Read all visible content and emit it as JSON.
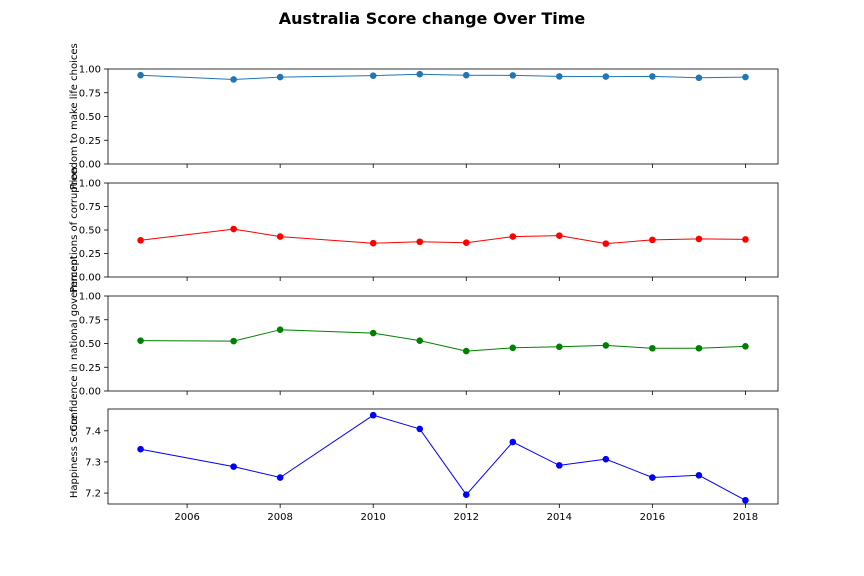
{
  "figure": {
    "title": "Australia Score change Over Time"
  },
  "chart_data": {
    "type": "line",
    "x": [
      2005,
      2007,
      2008,
      2010,
      2011,
      2012,
      2013,
      2014,
      2015,
      2016,
      2017,
      2018
    ],
    "xlim": [
      2004.3,
      2018.7
    ],
    "xticks": [
      2006,
      2008,
      2010,
      2012,
      2014,
      2016,
      2018
    ],
    "grid": false,
    "panels": [
      {
        "ylabel": "Freedom to make life choices",
        "color": "#1f77b4",
        "ylim": [
          0,
          1
        ],
        "yticks": [
          0,
          0.25,
          0.5,
          0.75,
          1
        ],
        "ytick_labels": [
          "0.00",
          "0.25",
          "0.50",
          "0.75",
          "1.00"
        ],
        "values": [
          0.935,
          0.89,
          0.915,
          0.93,
          0.945,
          0.935,
          0.933,
          0.922,
          0.92,
          0.922,
          0.908,
          0.915
        ]
      },
      {
        "ylabel": "Perceptions of corruption",
        "color": "#ff0000",
        "ylim": [
          0,
          1
        ],
        "yticks": [
          0,
          0.25,
          0.5,
          0.75,
          1
        ],
        "ytick_labels": [
          "0.00",
          "0.25",
          "0.50",
          "0.75",
          "1.00"
        ],
        "values": [
          0.39,
          0.51,
          0.43,
          0.36,
          0.375,
          0.365,
          0.43,
          0.44,
          0.355,
          0.395,
          0.405,
          0.4
        ]
      },
      {
        "ylabel": "Confidence in national government",
        "color": "#008000",
        "ylim": [
          0,
          1
        ],
        "yticks": [
          0,
          0.25,
          0.5,
          0.75,
          1
        ],
        "ytick_labels": [
          "0.00",
          "0.25",
          "0.50",
          "0.75",
          "1.00"
        ],
        "values": [
          0.53,
          0.525,
          0.645,
          0.61,
          0.53,
          0.42,
          0.455,
          0.465,
          0.48,
          0.45,
          0.45,
          0.47
        ]
      },
      {
        "ylabel": "Happiness Score",
        "color": "#0000ff",
        "ylim": [
          7.165,
          7.47
        ],
        "yticks": [
          7.2,
          7.3,
          7.4
        ],
        "ytick_labels": [
          "7.2",
          "7.3",
          "7.4"
        ],
        "values": [
          7.341,
          7.285,
          7.25,
          7.45,
          7.406,
          7.195,
          7.364,
          7.289,
          7.309,
          7.25,
          7.257,
          7.177
        ]
      }
    ]
  }
}
